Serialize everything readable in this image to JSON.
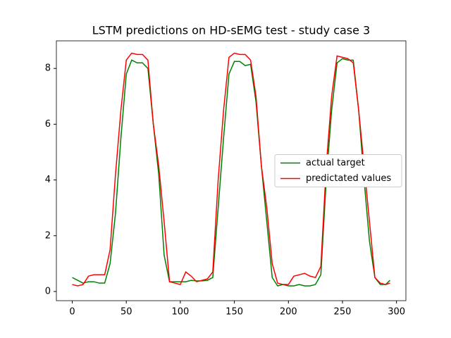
{
  "chart_data": {
    "type": "line",
    "title": "LSTM predictions on HD-sEMG test - study case 3",
    "x": [
      0,
      5,
      10,
      15,
      20,
      25,
      30,
      35,
      40,
      45,
      50,
      55,
      60,
      65,
      70,
      75,
      80,
      85,
      90,
      95,
      100,
      105,
      110,
      115,
      120,
      125,
      130,
      135,
      140,
      145,
      150,
      155,
      160,
      165,
      170,
      175,
      180,
      185,
      190,
      195,
      200,
      205,
      210,
      215,
      220,
      225,
      230,
      235,
      240,
      245,
      250,
      255,
      260,
      265,
      270,
      275,
      280,
      285,
      290,
      294
    ],
    "series": [
      {
        "name": "actual target",
        "color": "#008000",
        "values": [
          0.5,
          0.4,
          0.3,
          0.35,
          0.35,
          0.3,
          0.3,
          1.0,
          2.8,
          5.5,
          7.8,
          8.3,
          8.2,
          8.2,
          8.0,
          6.0,
          4.2,
          1.3,
          0.35,
          0.35,
          0.35,
          0.35,
          0.4,
          0.38,
          0.38,
          0.4,
          0.5,
          3.0,
          5.5,
          7.8,
          8.25,
          8.25,
          8.1,
          8.15,
          6.8,
          4.5,
          2.5,
          0.5,
          0.2,
          0.25,
          0.2,
          0.2,
          0.25,
          0.2,
          0.2,
          0.25,
          0.6,
          4.0,
          6.5,
          8.2,
          8.35,
          8.3,
          8.3,
          6.5,
          4.0,
          1.8,
          0.5,
          0.25,
          0.25,
          0.4
        ]
      },
      {
        "name": "predictated values",
        "color": "#ff0000",
        "values": [
          0.25,
          0.2,
          0.25,
          0.55,
          0.6,
          0.6,
          0.6,
          1.5,
          4.2,
          6.5,
          8.3,
          8.55,
          8.5,
          8.5,
          8.3,
          6.0,
          4.5,
          2.5,
          0.35,
          0.3,
          0.25,
          0.7,
          0.55,
          0.35,
          0.4,
          0.45,
          0.7,
          4.0,
          6.5,
          8.4,
          8.55,
          8.5,
          8.5,
          8.3,
          7.0,
          4.5,
          3.0,
          1.0,
          0.3,
          0.25,
          0.25,
          0.55,
          0.6,
          0.65,
          0.55,
          0.5,
          0.9,
          4.5,
          7.0,
          8.45,
          8.4,
          8.35,
          8.2,
          6.5,
          4.5,
          2.5,
          0.5,
          0.3,
          0.25,
          0.3
        ]
      }
    ],
    "xlim": [
      -14.7,
      308.7
    ],
    "xticks": [
      0,
      50,
      100,
      150,
      200,
      250,
      300
    ],
    "ylim": [
      -0.33,
      8.99
    ],
    "yticks": [
      0,
      2,
      4,
      6,
      8
    ],
    "legend": "center right"
  }
}
